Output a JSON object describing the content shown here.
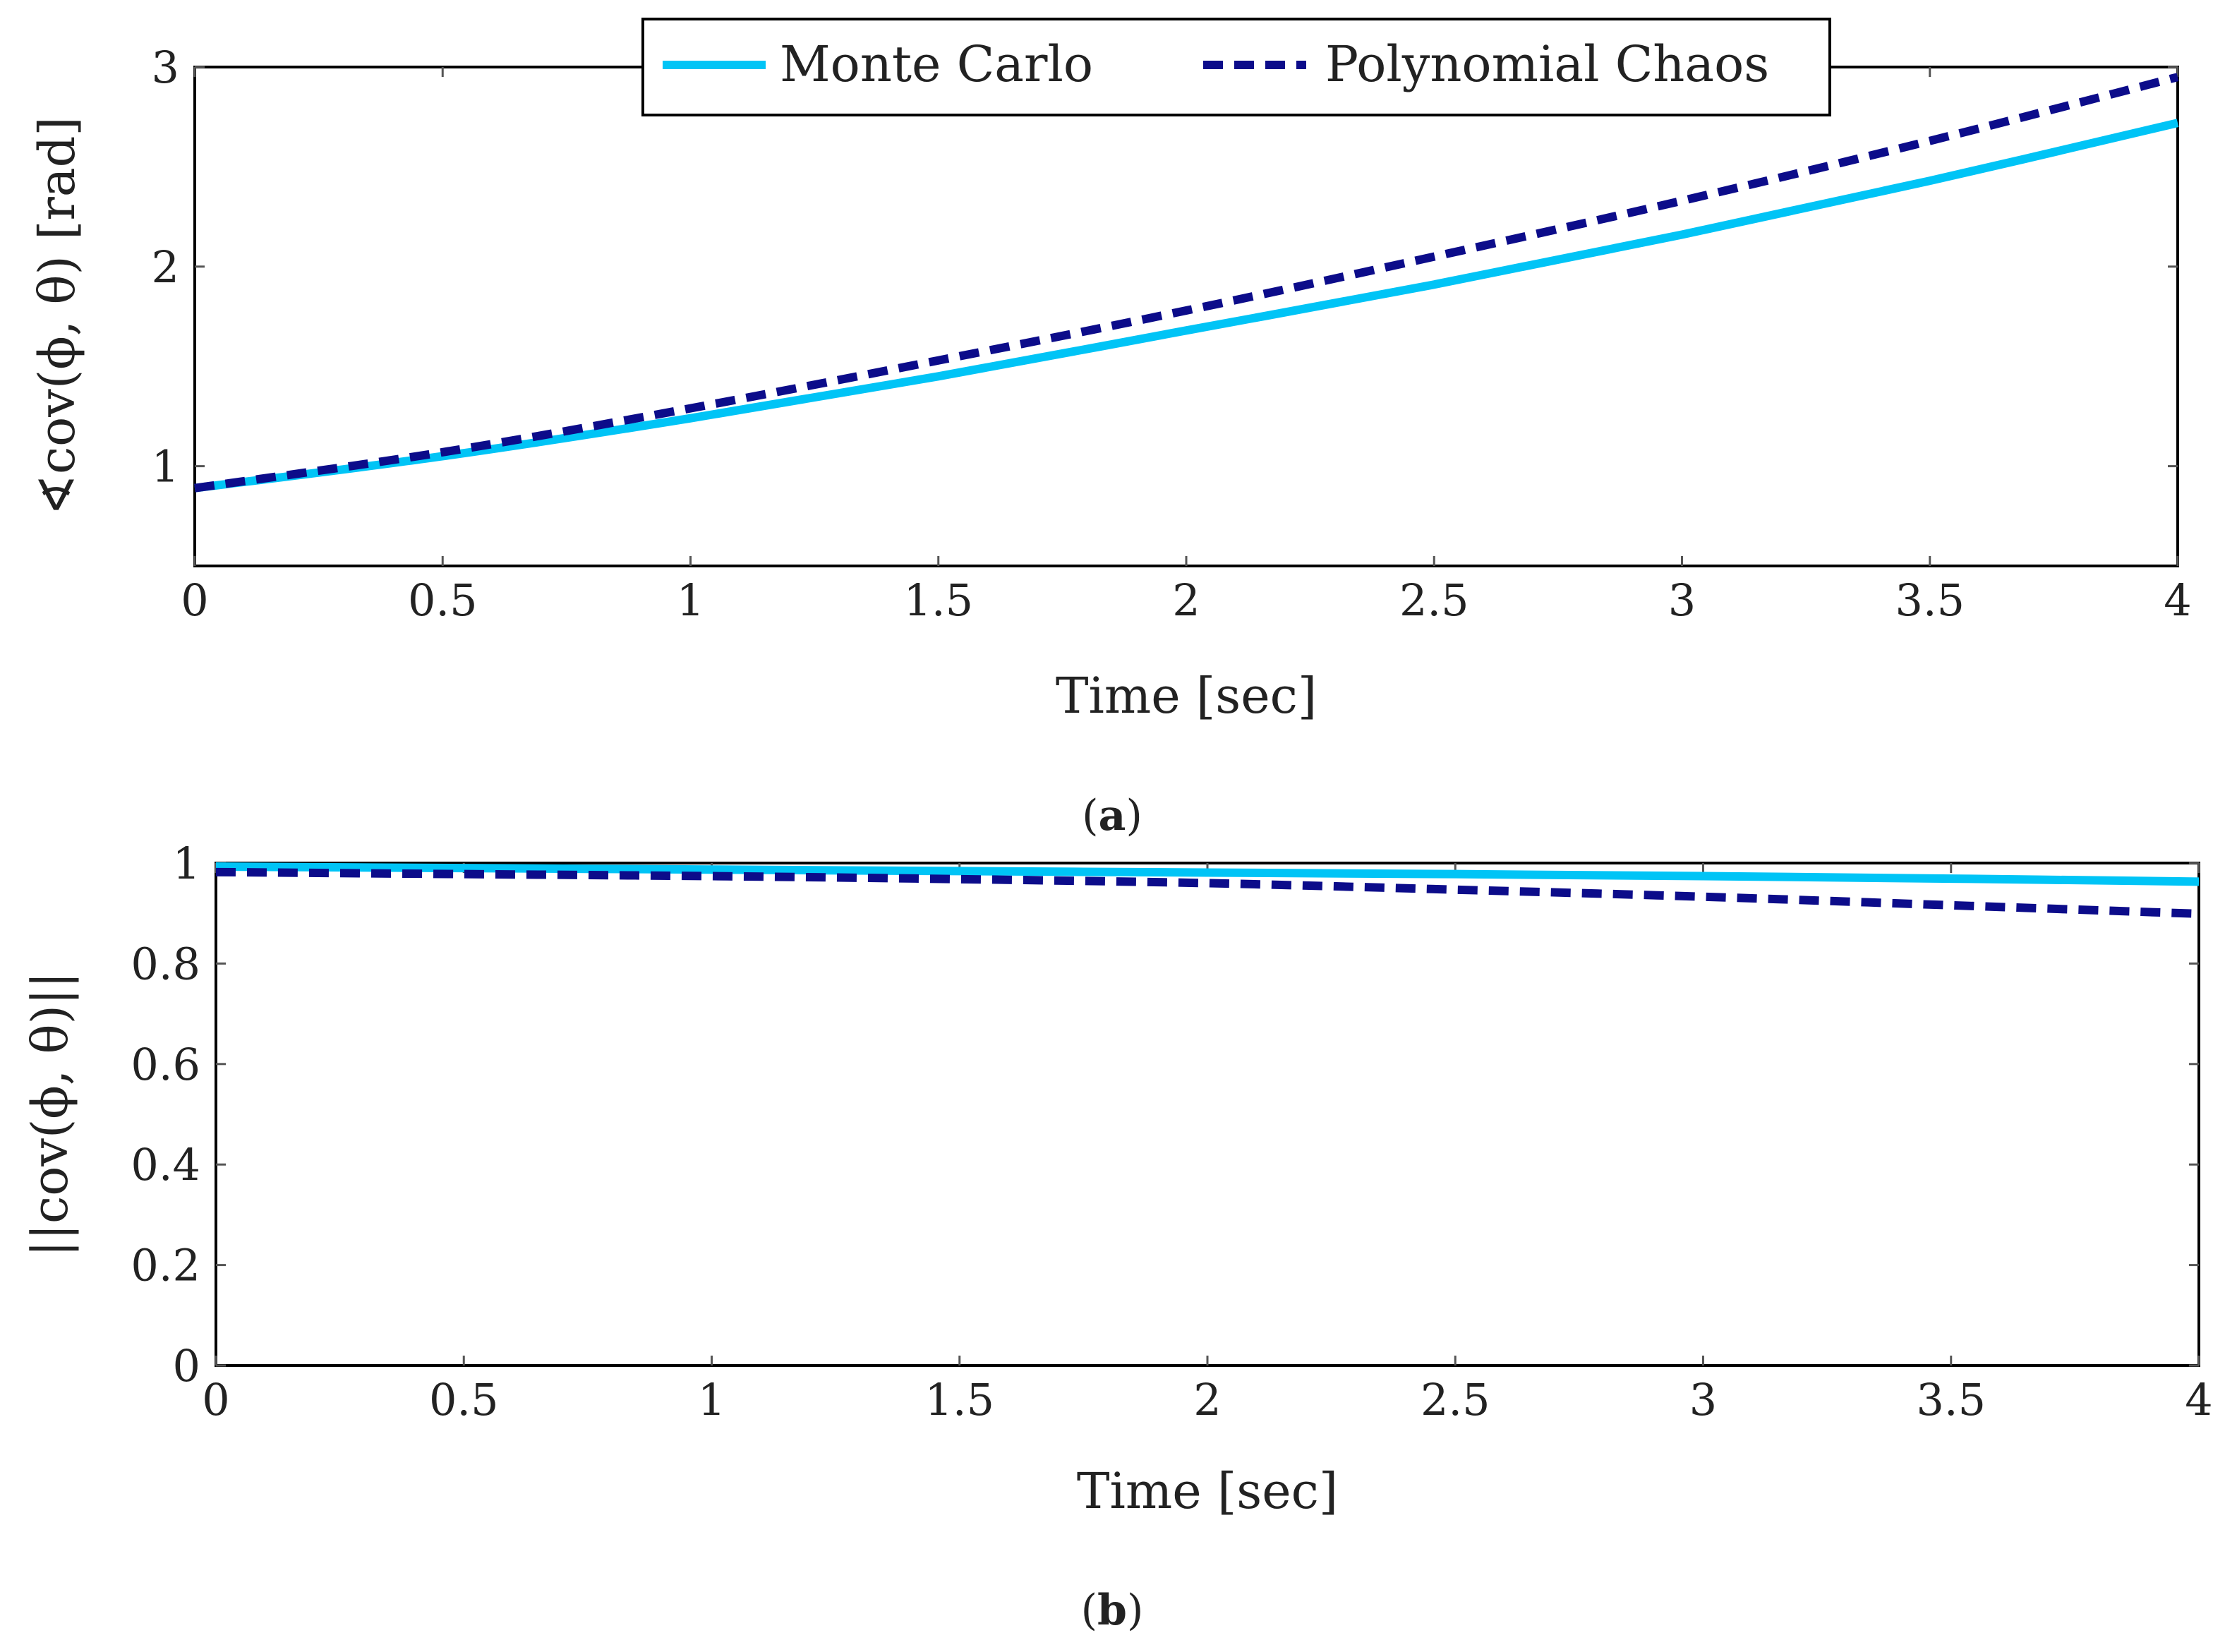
{
  "colors": {
    "monte_carlo": "#00c4f6",
    "polynomial_chaos": "#0c0c8a"
  },
  "legend": {
    "monte_carlo": "Monte Carlo",
    "polynomial_chaos": "Polynomial Chaos"
  },
  "chart_data": [
    {
      "type": "line",
      "panel_label": "a",
      "title": "",
      "xlabel": "Time [sec]",
      "ylabel": "∢cov(ϕ, θ) [rad]",
      "xlim": [
        0,
        4
      ],
      "ylim": [
        0.5,
        3
      ],
      "xticks": [
        0,
        0.5,
        1,
        1.5,
        2,
        2.5,
        3,
        3.5,
        4
      ],
      "xtick_labels": [
        "0",
        "0.5",
        "1",
        "1.5",
        "2",
        "2.5",
        "3",
        "3.5",
        "4"
      ],
      "yticks": [
        1,
        2,
        3
      ],
      "ytick_labels": [
        "1",
        "2",
        "3"
      ],
      "legend_position": "top-center",
      "x": [
        0,
        0.5,
        1,
        1.5,
        2,
        2.5,
        3,
        3.5,
        4
      ],
      "series": [
        {
          "name": "Monte Carlo",
          "style": "solid",
          "values": [
            0.89,
            1.05,
            1.24,
            1.45,
            1.68,
            1.91,
            2.16,
            2.43,
            2.72
          ]
        },
        {
          "name": "Polynomial Chaos",
          "style": "dashed",
          "values": [
            0.89,
            1.07,
            1.29,
            1.53,
            1.78,
            2.05,
            2.33,
            2.63,
            2.95
          ]
        }
      ]
    },
    {
      "type": "line",
      "panel_label": "b",
      "title": "",
      "xlabel": "Time [sec]",
      "ylabel": "||cov(ϕ, θ)||",
      "xlim": [
        0,
        4
      ],
      "ylim": [
        0,
        1
      ],
      "xticks": [
        0,
        0.5,
        1,
        1.5,
        2,
        2.5,
        3,
        3.5,
        4
      ],
      "xtick_labels": [
        "0",
        "0.5",
        "1",
        "1.5",
        "2",
        "2.5",
        "3",
        "3.5",
        "4"
      ],
      "yticks": [
        0,
        0.2,
        0.4,
        0.6,
        0.8,
        1
      ],
      "ytick_labels": [
        "0",
        "0.2",
        "0.4",
        "0.6",
        "0.8",
        "1"
      ],
      "x": [
        0,
        0.5,
        1,
        1.5,
        2,
        2.5,
        3,
        3.5,
        4
      ],
      "series": [
        {
          "name": "Monte Carlo",
          "style": "solid",
          "values": [
            0.993,
            0.99,
            0.987,
            0.984,
            0.981,
            0.978,
            0.974,
            0.969,
            0.963
          ]
        },
        {
          "name": "Polynomial Chaos",
          "style": "dashed",
          "values": [
            0.982,
            0.978,
            0.974,
            0.968,
            0.96,
            0.947,
            0.933,
            0.916,
            0.899
          ]
        }
      ]
    }
  ]
}
